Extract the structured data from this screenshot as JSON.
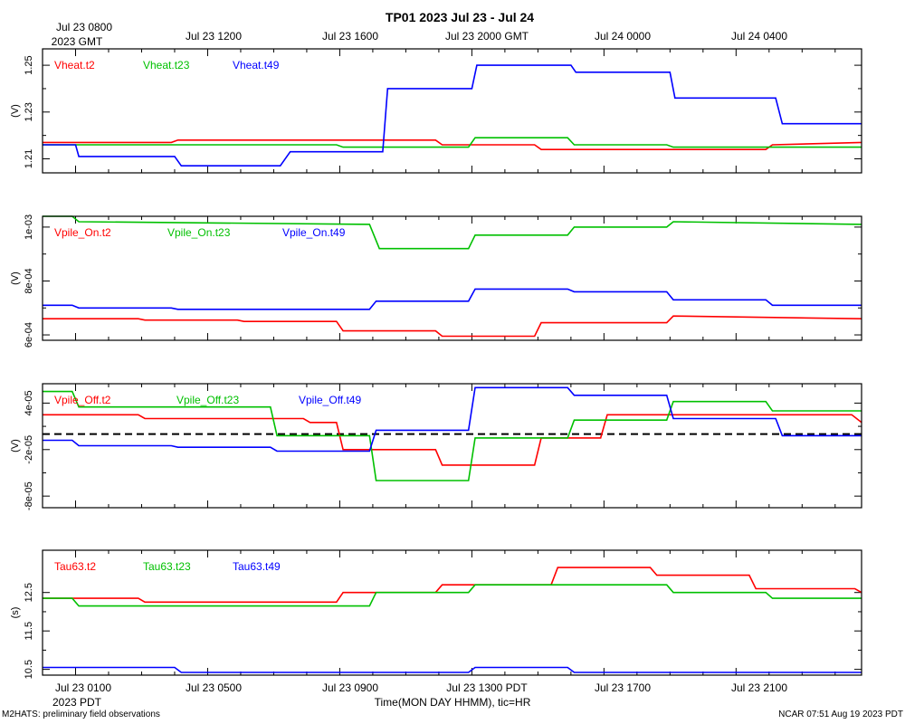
{
  "title": "TP01 2023 Jul 23 - Jul 24",
  "footer_left": "M2HATS: preliminary field observations",
  "footer_right": "NCAR 07:51 Aug 19 2023 PDT",
  "top_axis": {
    "first_label_line1": "Jul 23 0800",
    "first_label_line2": "2023 GMT",
    "labels": [
      "Jul 23 1200",
      "Jul 23 1600",
      "Jul 23 2000 GMT",
      "Jul 24 0000",
      "Jul 24 0400"
    ]
  },
  "bottom_axis": {
    "first_label_line1": "Jul 23 0100",
    "first_label_line2": "2023 PDT",
    "labels": [
      "Jul 23 0500",
      "Jul 23 0900",
      "Jul 23 1300 PDT",
      "Jul 23 1700",
      "Jul 23 2100"
    ],
    "xlabel": "Time(MON DAY HHMM), tic=HR"
  },
  "colors": {
    "t2": "#ff0000",
    "t23": "#00c000",
    "t49": "#0000ff",
    "frame": "#000000",
    "zero_line": "#000000"
  },
  "chart_data": [
    {
      "type": "line",
      "x_unit": "hours since Jul 23 0000 PDT",
      "xlim": [
        0,
        24.8
      ],
      "ylabel": "(V)",
      "ylim": [
        1.204,
        1.257
      ],
      "yticks": [
        1.21,
        1.23,
        1.25
      ],
      "yticklabels": [
        "1.21",
        "1.23",
        "1.25"
      ],
      "series": [
        {
          "name": "Vheat.t2",
          "color_key": "t2",
          "x": [
            0,
            3.9,
            4.1,
            11.9,
            12.1,
            14.9,
            15.1,
            21.9,
            22.1,
            24.8
          ],
          "y": [
            1.217,
            1.217,
            1.218,
            1.218,
            1.216,
            1.216,
            1.214,
            1.214,
            1.216,
            1.217
          ]
        },
        {
          "name": "Vheat.t23",
          "color_key": "t23",
          "x": [
            0,
            4.9,
            5.1,
            8.9,
            9.1,
            12.9,
            13.1,
            15.9,
            16.1,
            18.9,
            19.1,
            24.8
          ],
          "y": [
            1.216,
            1.216,
            1.216,
            1.216,
            1.215,
            1.215,
            1.219,
            1.219,
            1.216,
            1.216,
            1.215,
            1.215
          ]
        },
        {
          "name": "Vheat.t49",
          "color_key": "t49",
          "x": [
            0,
            1,
            1.1,
            4,
            4.2,
            7.2,
            7.5,
            10.3,
            10.45,
            13,
            13.15,
            16,
            16.15,
            19,
            19.15,
            22.2,
            22.4,
            24.8
          ],
          "y": [
            1.216,
            1.216,
            1.211,
            1.211,
            1.207,
            1.207,
            1.213,
            1.213,
            1.24,
            1.24,
            1.25,
            1.25,
            1.247,
            1.247,
            1.236,
            1.236,
            1.225,
            1.225
          ]
        }
      ]
    },
    {
      "type": "line",
      "x_unit": "hours since Jul 23 0000 PDT",
      "xlim": [
        0,
        24.8
      ],
      "ylabel": "(V)",
      "ylim": [
        0.00058,
        0.00104
      ],
      "yticks": [
        0.0006,
        0.0008,
        0.001
      ],
      "yticklabels": [
        "6e-04",
        "8e-04",
        "1e-03"
      ],
      "series": [
        {
          "name": "Vpile_On.t2",
          "color_key": "t2",
          "x": [
            0,
            2.9,
            3.1,
            5.9,
            6.1,
            8.9,
            9.1,
            11.9,
            12.1,
            14.9,
            15.1,
            18.9,
            19.1,
            24.8
          ],
          "y": [
            0.00066,
            0.00066,
            0.000655,
            0.000655,
            0.00065,
            0.00065,
            0.000615,
            0.000615,
            0.000595,
            0.000595,
            0.000645,
            0.000645,
            0.00067,
            0.00066
          ]
        },
        {
          "name": "Vpile_On.t23",
          "color_key": "t23",
          "x": [
            0,
            0.9,
            1.1,
            9.9,
            10.2,
            12.9,
            13.1,
            15.9,
            16.1,
            18.9,
            19.1,
            24.8
          ],
          "y": [
            0.00104,
            0.00104,
            0.00102,
            0.00101,
            0.00092,
            0.00092,
            0.00097,
            0.00097,
            0.001,
            0.001,
            0.00102,
            0.00101
          ]
        },
        {
          "name": "Vpile_On.t49",
          "color_key": "t49",
          "x": [
            0,
            0.9,
            1.1,
            3.9,
            4.1,
            9.9,
            10.1,
            12.9,
            13.1,
            15.9,
            16.1,
            18.9,
            19.1,
            21.9,
            22.1,
            24.8
          ],
          "y": [
            0.00071,
            0.00071,
            0.0007,
            0.0007,
            0.000695,
            0.000695,
            0.000725,
            0.000725,
            0.00077,
            0.00077,
            0.00076,
            0.00076,
            0.00073,
            0.00073,
            0.00071,
            0.00071
          ]
        }
      ]
    },
    {
      "type": "line",
      "x_unit": "hours since Jul 23 0000 PDT",
      "xlim": [
        0,
        24.8
      ],
      "ylabel": "(V)",
      "ylim": [
        -9.5e-05,
        6.5e-05
      ],
      "yticks": [
        -8e-05,
        -2e-05,
        4e-05
      ],
      "yticklabels": [
        "-8e-05",
        "-2e-05",
        "4e-05"
      ],
      "zero_line": 0,
      "series": [
        {
          "name": "Vpile_Off.t2",
          "color_key": "t2",
          "x": [
            0,
            2.9,
            3.1,
            7.9,
            8.1,
            8.9,
            9.1,
            11.9,
            12.1,
            14.9,
            15.1,
            16.9,
            17.1,
            24.5,
            24.8
          ],
          "y": [
            2.5e-05,
            2.5e-05,
            2e-05,
            2e-05,
            1.5e-05,
            1.5e-05,
            -2e-05,
            -2e-05,
            -4e-05,
            -4e-05,
            -5e-06,
            -5e-06,
            2.5e-05,
            2.5e-05,
            1.5e-05
          ]
        },
        {
          "name": "Vpile_Off.t23",
          "color_key": "t23",
          "x": [
            0,
            0.9,
            1.1,
            6.9,
            7.1,
            9.9,
            10.1,
            12.9,
            13.1,
            15.9,
            16.1,
            18.9,
            19.1,
            21.9,
            22.1,
            24.8
          ],
          "y": [
            5.5e-05,
            5.5e-05,
            3.5e-05,
            3.5e-05,
            -2e-06,
            -2e-06,
            -6e-05,
            -6e-05,
            -5e-06,
            -5e-06,
            1.8e-05,
            1.8e-05,
            4.2e-05,
            4.2e-05,
            3e-05,
            3e-05
          ]
        },
        {
          "name": "Vpile_Off.t49",
          "color_key": "t49",
          "x": [
            0,
            0.9,
            1.1,
            3.9,
            4.1,
            6.9,
            7.1,
            9.9,
            10.1,
            12.9,
            13.1,
            15.9,
            16.1,
            18.9,
            19.1,
            22.2,
            22.4,
            24.8
          ],
          "y": [
            -8e-06,
            -8e-06,
            -1.5e-05,
            -1.5e-05,
            -1.7e-05,
            -1.7e-05,
            -2.2e-05,
            -2.2e-05,
            5e-06,
            5e-06,
            6e-05,
            6e-05,
            5e-05,
            5e-05,
            2e-05,
            2e-05,
            -2e-06,
            -2e-06
          ]
        }
      ]
    },
    {
      "type": "line",
      "x_unit": "hours since Jul 23 0000 PDT",
      "xlim": [
        0,
        24.8
      ],
      "ylabel": "(s)",
      "ylim": [
        10.35,
        13.6
      ],
      "yticks": [
        10.5,
        11.5,
        12.5
      ],
      "yticklabels": [
        "10.5",
        "11.5",
        "12.5"
      ],
      "series": [
        {
          "name": "Tau63.t2",
          "color_key": "t2",
          "x": [
            0,
            2.9,
            3.1,
            8.9,
            9.1,
            11.9,
            12.1,
            15.4,
            15.6,
            18.4,
            18.6,
            21.4,
            21.6,
            24.6,
            24.8
          ],
          "y": [
            12.35,
            12.35,
            12.25,
            12.25,
            12.5,
            12.5,
            12.7,
            12.7,
            13.15,
            13.15,
            12.95,
            12.95,
            12.6,
            12.6,
            12.5
          ]
        },
        {
          "name": "Tau63.t23",
          "color_key": "t23",
          "x": [
            0,
            0.9,
            1.1,
            9.9,
            10.1,
            12.9,
            13.1,
            18.9,
            19.1,
            21.9,
            22.1,
            24.8
          ],
          "y": [
            12.35,
            12.35,
            12.15,
            12.15,
            12.5,
            12.5,
            12.7,
            12.7,
            12.5,
            12.5,
            12.35,
            12.35
          ]
        },
        {
          "name": "Tau63.t49",
          "color_key": "t49",
          "x": [
            0,
            4,
            4.2,
            12.9,
            13.1,
            15.9,
            16.1,
            24.8
          ],
          "y": [
            10.55,
            10.55,
            10.42,
            10.42,
            10.55,
            10.55,
            10.42,
            10.42
          ]
        }
      ]
    }
  ]
}
